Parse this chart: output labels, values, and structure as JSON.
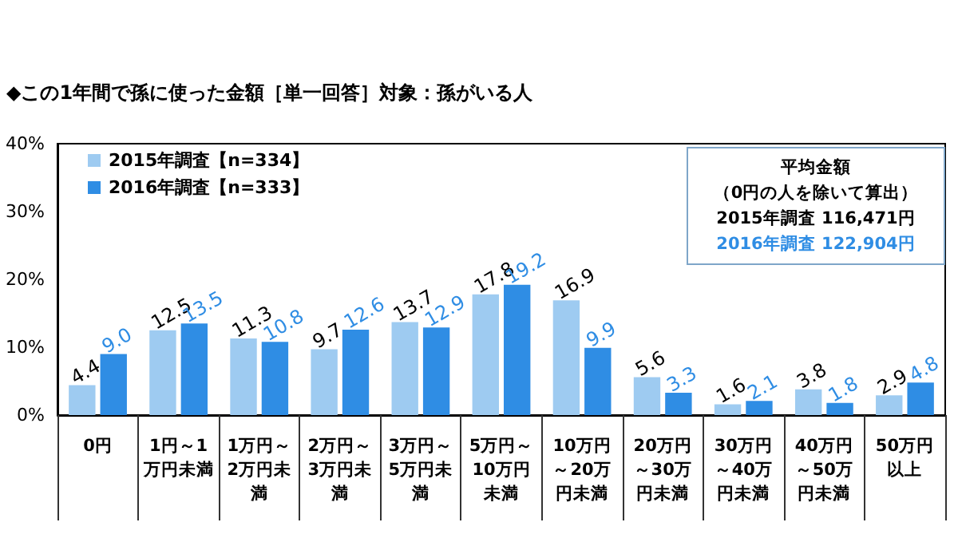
{
  "chart_data": {
    "type": "bar",
    "title": "◆この1年間で孫に使った金額［単一回答］対象：孫がいる人",
    "categories": [
      "0円",
      "1円～1万円未満",
      "1万円～2万円未満",
      "2万円～3万円未満",
      "3万円～5万円未満",
      "5万円～10万円未満",
      "10万円～20万円未満",
      "20万円～30万円未満",
      "30万円～40万円未満",
      "40万円～50万円未満",
      "50万円以上"
    ],
    "series": [
      {
        "name": "2015年調査【n=334】",
        "color": "#9ecbf1",
        "values": [
          4.4,
          12.5,
          11.3,
          9.7,
          13.7,
          17.8,
          16.9,
          5.6,
          1.6,
          3.8,
          2.9
        ],
        "value_labels": [
          "4.4",
          "12.5",
          "11.3",
          "9.7",
          "13.7",
          "17.8",
          "16.9",
          "5.6",
          "1.6",
          "3.8",
          "2.9"
        ]
      },
      {
        "name": "2016年調査【n=333】",
        "color": "#2f8de4",
        "values": [
          9.0,
          13.5,
          10.8,
          12.6,
          12.9,
          19.2,
          9.9,
          3.3,
          2.1,
          1.8,
          4.8
        ],
        "value_labels": [
          "9.0",
          "13.5",
          "10.8",
          "12.6",
          "12.9",
          "19.2",
          "9.9",
          "3.3",
          "2.1",
          "1.8",
          "4.8"
        ]
      }
    ],
    "ylim": [
      0,
      40
    ],
    "yticks": [
      {
        "value": 0,
        "label": "0%"
      },
      {
        "value": 10,
        "label": "10%"
      },
      {
        "value": 20,
        "label": "20%"
      },
      {
        "value": 30,
        "label": "30%"
      },
      {
        "value": 40,
        "label": "40%"
      }
    ],
    "grid": false,
    "legend": "top left",
    "annotations": [
      "平均金額",
      "（0円の人を除いて算出）",
      "2015年調査  116,471円",
      "2016年調査  122,904円"
    ]
  }
}
